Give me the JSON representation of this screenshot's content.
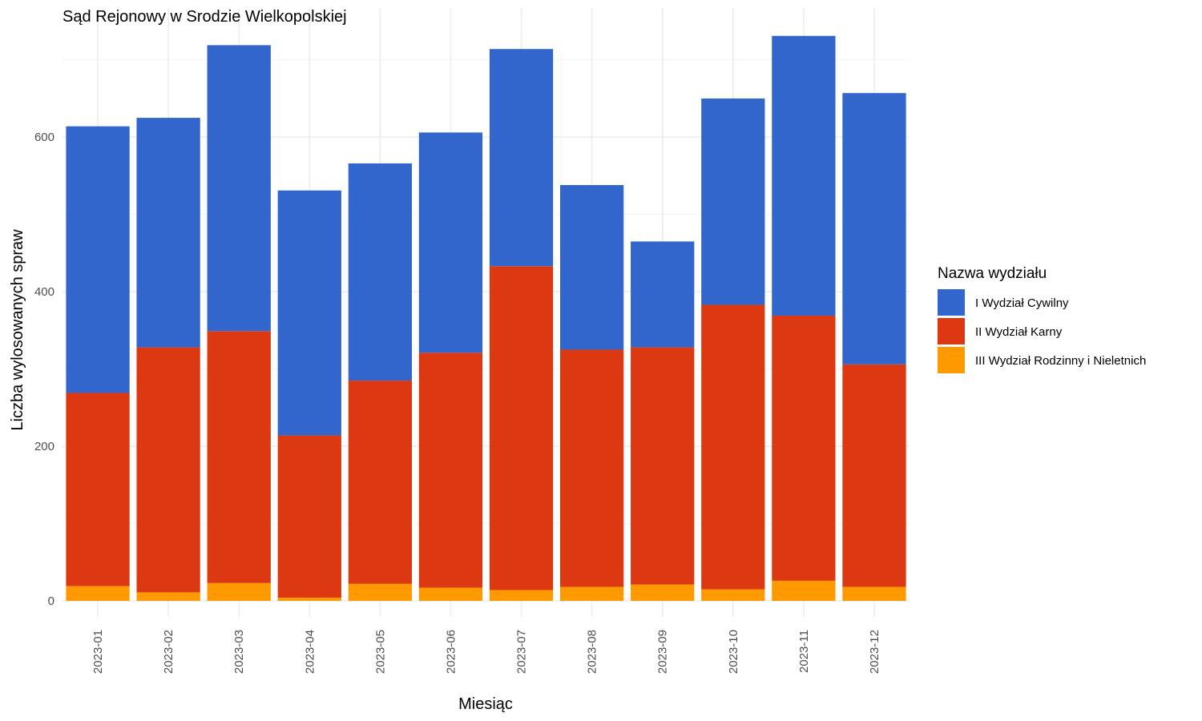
{
  "chart_data": {
    "type": "bar",
    "stacked": true,
    "title": "Sąd Rejonowy w Srodzie Wielkopolskiej",
    "xlabel": "Miesiąc",
    "ylabel": "Liczba wylosowanych spraw",
    "categories": [
      "2023-01",
      "2023-02",
      "2023-03",
      "2023-04",
      "2023-05",
      "2023-06",
      "2023-07",
      "2023-08",
      "2023-09",
      "2023-10",
      "2023-11",
      "2023-12"
    ],
    "ylim": [
      0,
      740
    ],
    "yticks": [
      0,
      200,
      400,
      600
    ],
    "grid": true,
    "legend": {
      "title": "Nazwa wydziału",
      "position": "right"
    },
    "series": [
      {
        "name": "III Wydział Rodzinny i Nieletnich",
        "color": "#FF9900",
        "values": [
          19,
          11,
          23,
          4,
          22,
          17,
          14,
          18,
          21,
          15,
          26,
          18
        ]
      },
      {
        "name": "II Wydział Karny",
        "color": "#DC3912",
        "values": [
          250,
          317,
          326,
          210,
          263,
          304,
          419,
          307,
          307,
          368,
          343,
          288
        ]
      },
      {
        "name": "I Wydział Cywilny",
        "color": "#3366CC",
        "values": [
          345,
          297,
          370,
          317,
          281,
          285,
          281,
          213,
          137,
          267,
          362,
          351
        ]
      }
    ]
  }
}
